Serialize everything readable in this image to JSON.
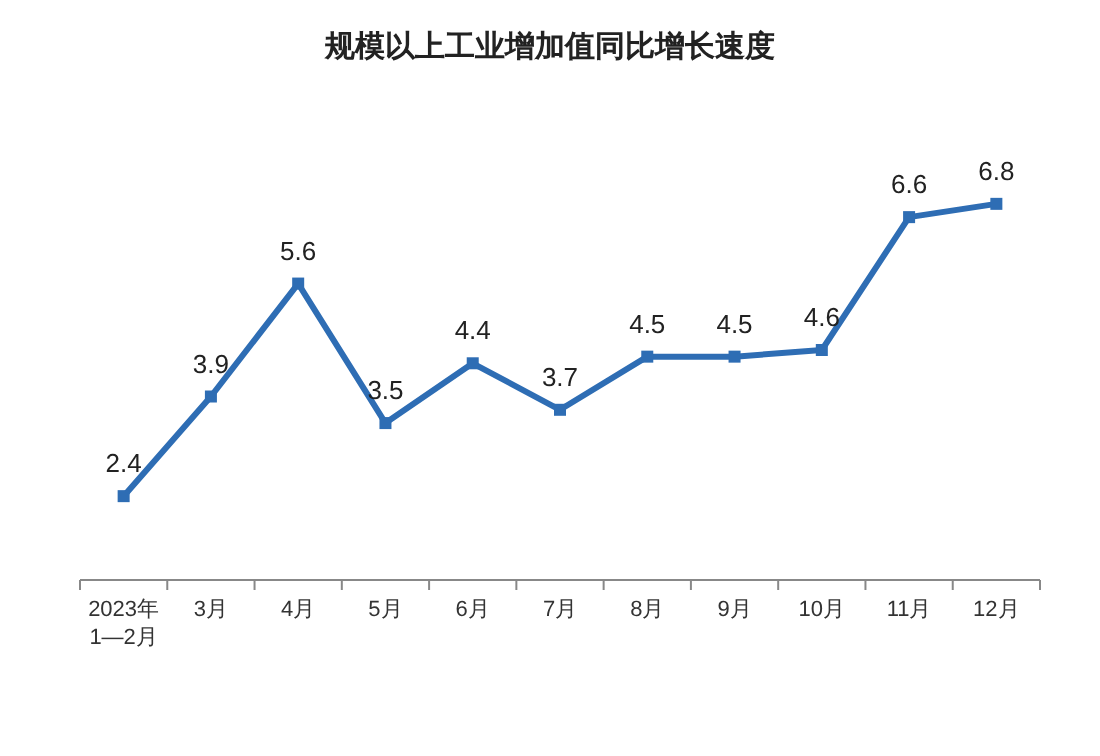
{
  "chart_data": {
    "type": "line",
    "title": "规模以上工业增加值同比增长速度",
    "categories": [
      "2023年\n1—2月",
      "3月",
      "4月",
      "5月",
      "6月",
      "7月",
      "8月",
      "9月",
      "10月",
      "11月",
      "12月"
    ],
    "series": [
      {
        "color": "#2e6db4",
        "values": [
          2.4,
          3.9,
          5.6,
          3.5,
          4.4,
          3.7,
          4.5,
          4.5,
          4.6,
          6.6,
          6.8
        ]
      }
    ],
    "data_labels": true,
    "marker": "square",
    "line_style": "solid"
  }
}
